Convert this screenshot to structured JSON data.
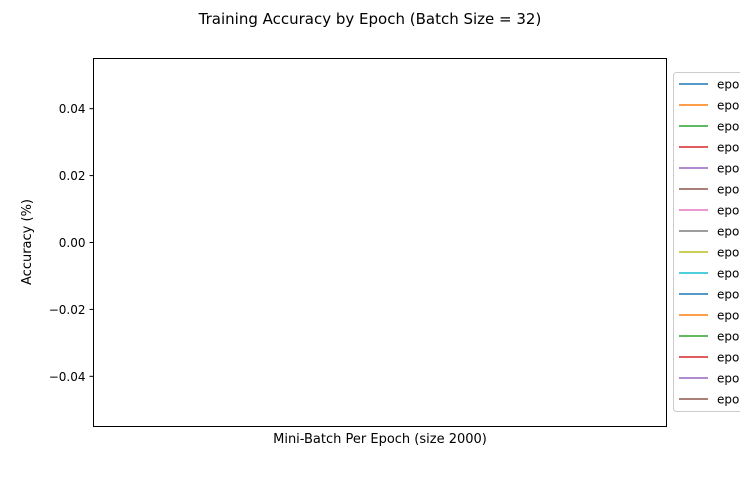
{
  "chart_data": {
    "type": "line",
    "title": "Training Accuracy by Epoch (Batch Size = 32)",
    "xlabel": "Mini-Batch Per Epoch (size 2000)",
    "ylabel": "Accuracy (%)",
    "ylim": [
      -0.055,
      0.055
    ],
    "yticks": [
      -0.04,
      -0.02,
      0.0,
      0.02,
      0.04
    ],
    "ytick_labels": [
      "−0.04",
      "−0.02",
      "0.00",
      "0.02",
      "0.04"
    ],
    "xticks": [],
    "grid": false,
    "legend_position": "outside-right",
    "series": [
      {
        "name": "epo",
        "color": "#1f77b4",
        "values": []
      },
      {
        "name": "epo",
        "color": "#ff7f0e",
        "values": []
      },
      {
        "name": "epo",
        "color": "#2ca02c",
        "values": []
      },
      {
        "name": "epo",
        "color": "#d62728",
        "values": []
      },
      {
        "name": "epo",
        "color": "#9467bd",
        "values": []
      },
      {
        "name": "epo",
        "color": "#8c564b",
        "values": []
      },
      {
        "name": "epo",
        "color": "#e377c2",
        "values": []
      },
      {
        "name": "epo",
        "color": "#7f7f7f",
        "values": []
      },
      {
        "name": "epo",
        "color": "#bcbd22",
        "values": []
      },
      {
        "name": "epo",
        "color": "#17becf",
        "values": []
      },
      {
        "name": "epo",
        "color": "#1f77b4",
        "values": []
      },
      {
        "name": "epo",
        "color": "#ff7f0e",
        "values": []
      },
      {
        "name": "epo",
        "color": "#2ca02c",
        "values": []
      },
      {
        "name": "epo",
        "color": "#d62728",
        "values": []
      },
      {
        "name": "epo",
        "color": "#9467bd",
        "values": []
      },
      {
        "name": "epo",
        "color": "#8c564b",
        "values": []
      }
    ]
  }
}
